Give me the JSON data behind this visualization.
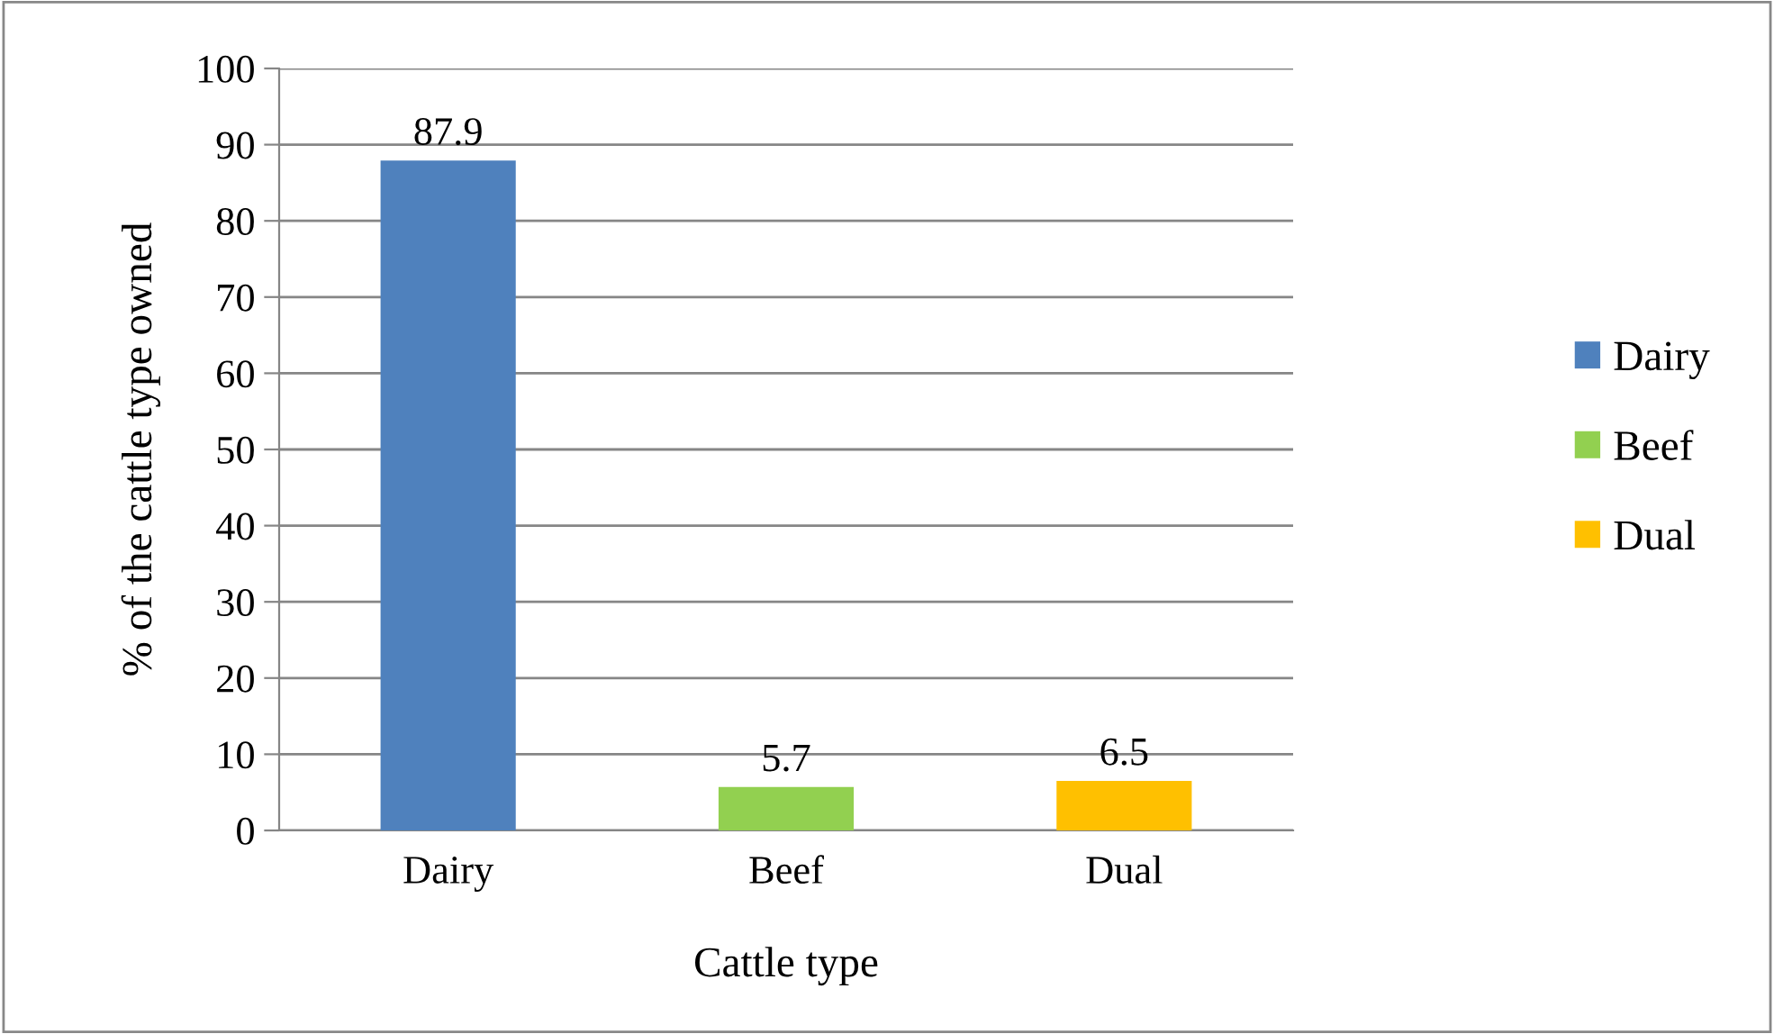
{
  "chart_data": {
    "type": "bar",
    "xlabel": "Cattle type",
    "ylabel": "% of the cattle type owned",
    "categories": [
      "Dairy",
      "Beef",
      "Dual"
    ],
    "series": [
      {
        "name": "Dairy",
        "color": "#4f81bd",
        "values": [
          87.9,
          null,
          null
        ]
      },
      {
        "name": "Beef",
        "color": "#92d050",
        "values": [
          null,
          5.7,
          null
        ]
      },
      {
        "name": "Dual",
        "color": "#ffc000",
        "values": [
          null,
          null,
          6.5
        ]
      }
    ],
    "ylim": [
      0,
      100
    ],
    "yticks": [
      0,
      10,
      20,
      30,
      40,
      50,
      60,
      70,
      80,
      90,
      100
    ],
    "grid": "y",
    "legend": "right",
    "data_labels": true
  }
}
